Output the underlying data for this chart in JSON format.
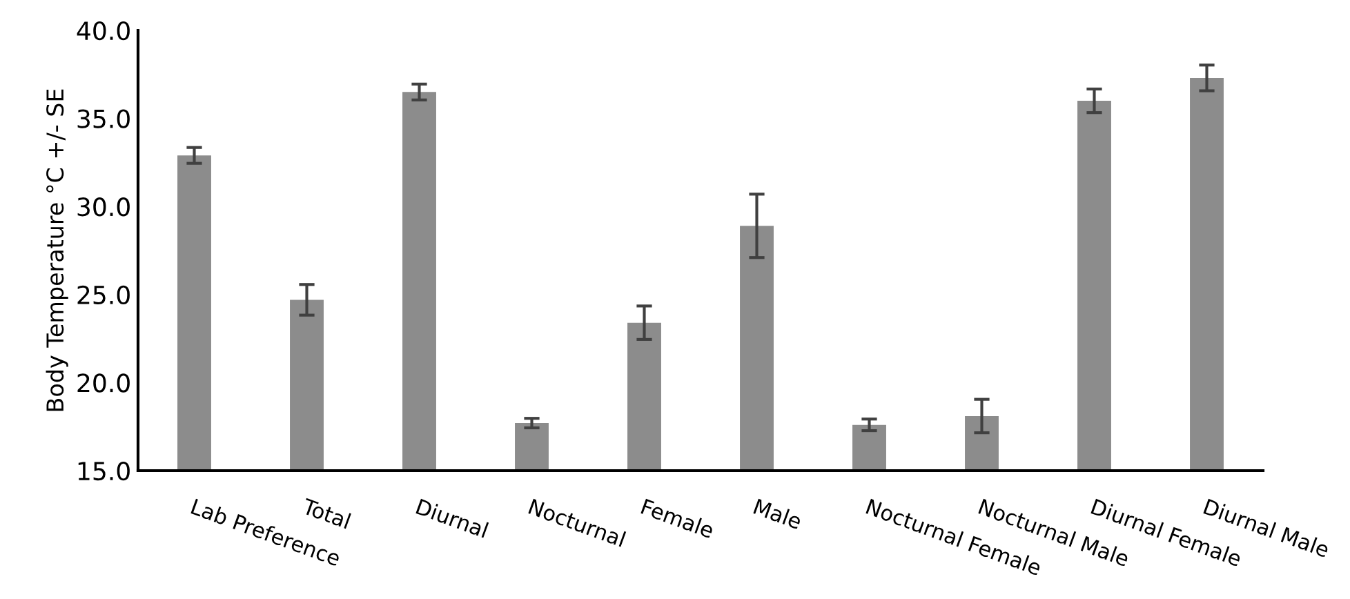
{
  "chart_data": {
    "type": "bar",
    "ylabel": "Body Temperature °C +/- SE",
    "categories": [
      "Lab Preference",
      "Total",
      "Diurnal",
      "Nocturnal",
      "Female",
      "Male",
      "Nocturnal Female",
      "Nocturnal Male",
      "Diurnal Female",
      "Diurnal Male"
    ],
    "values": [
      32.9,
      24.7,
      36.5,
      17.7,
      23.4,
      28.9,
      17.6,
      18.1,
      36.0,
      37.3
    ],
    "errors": [
      0.45,
      0.87,
      0.45,
      0.27,
      0.95,
      1.8,
      0.33,
      0.95,
      0.67,
      0.73
    ],
    "color": "#8c8c8c",
    "ylim": [
      15,
      40
    ],
    "yticks": [
      {
        "value": 15,
        "label": "15.0"
      },
      {
        "value": 20,
        "label": "20.0"
      },
      {
        "value": 25,
        "label": "25.0"
      },
      {
        "value": 30,
        "label": "30.0"
      },
      {
        "value": 35,
        "label": "35.0"
      },
      {
        "value": 40,
        "label": "40.0"
      }
    ],
    "grid": false
  }
}
